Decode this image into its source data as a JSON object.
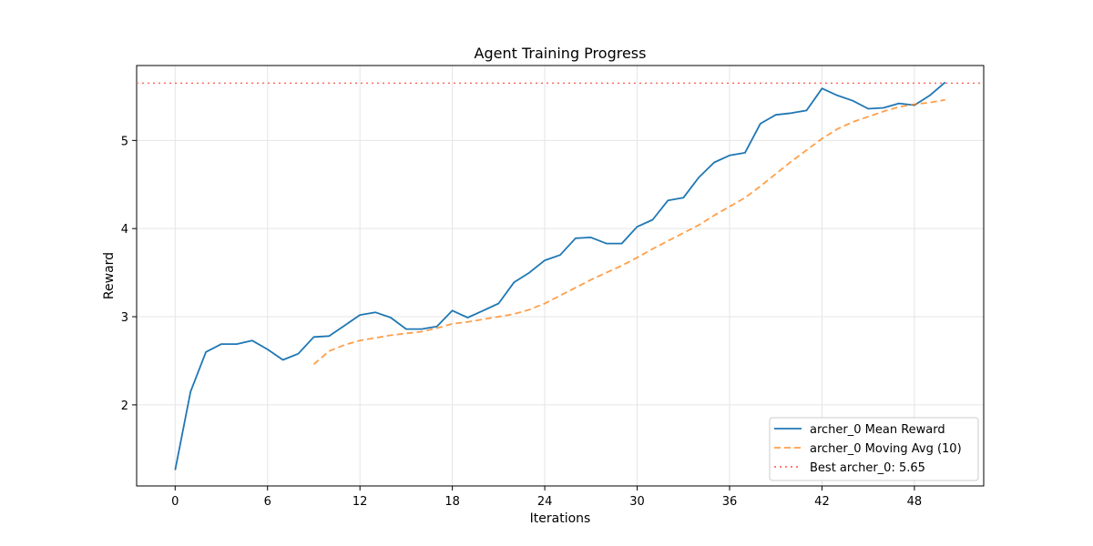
{
  "chart_data": {
    "type": "line",
    "title": "Agent Training Progress",
    "xlabel": "Iterations",
    "ylabel": "Reward",
    "xlim": [
      -2.5,
      52.5
    ],
    "ylim": [
      1.08,
      5.85
    ],
    "xticks": [
      0,
      6,
      12,
      18,
      24,
      30,
      36,
      42,
      48
    ],
    "yticks": [
      2,
      3,
      4,
      5
    ],
    "grid": true,
    "legend_position": "lower-right",
    "series": [
      {
        "name": "archer_0 Mean Reward",
        "color": "#1f77b4",
        "style": "solid",
        "x": [
          0,
          1,
          2,
          3,
          4,
          5,
          6,
          7,
          8,
          9,
          10,
          11,
          12,
          13,
          14,
          15,
          16,
          17,
          18,
          19,
          20,
          21,
          22,
          23,
          24,
          25,
          26,
          27,
          28,
          29,
          30,
          31,
          32,
          33,
          34,
          35,
          36,
          37,
          38,
          39,
          40,
          41,
          42,
          43,
          44,
          45,
          46,
          47,
          48,
          49,
          50
        ],
        "values": [
          1.26,
          2.15,
          2.6,
          2.69,
          2.69,
          2.73,
          2.63,
          2.51,
          2.58,
          2.77,
          2.78,
          2.9,
          3.02,
          3.05,
          2.99,
          2.86,
          2.86,
          2.89,
          3.07,
          2.99,
          3.07,
          3.15,
          3.39,
          3.5,
          3.64,
          3.7,
          3.89,
          3.9,
          3.83,
          3.83,
          4.02,
          4.1,
          4.32,
          4.35,
          4.58,
          4.75,
          4.83,
          4.86,
          5.19,
          5.29,
          5.31,
          5.34,
          5.59,
          5.51,
          5.45,
          5.36,
          5.37,
          5.42,
          5.4,
          5.51,
          5.66
        ]
      },
      {
        "name": "archer_0 Moving Avg (10)",
        "color": "#ff7f0e",
        "style": "dashed",
        "x": [
          9,
          10,
          11,
          12,
          13,
          14,
          15,
          16,
          17,
          18,
          19,
          20,
          21,
          22,
          23,
          24,
          25,
          26,
          27,
          28,
          29,
          30,
          31,
          32,
          33,
          34,
          35,
          36,
          37,
          38,
          39,
          40,
          41,
          42,
          43,
          44,
          45,
          46,
          47,
          48,
          49,
          50
        ],
        "values": [
          2.46,
          2.61,
          2.68,
          2.73,
          2.76,
          2.79,
          2.81,
          2.83,
          2.87,
          2.92,
          2.94,
          2.97,
          3.0,
          3.03,
          3.08,
          3.15,
          3.24,
          3.33,
          3.42,
          3.5,
          3.58,
          3.67,
          3.77,
          3.86,
          3.95,
          4.04,
          4.15,
          4.25,
          4.35,
          4.48,
          4.62,
          4.76,
          4.89,
          5.02,
          5.13,
          5.21,
          5.27,
          5.33,
          5.38,
          5.41,
          5.43,
          5.46
        ]
      }
    ],
    "reference_lines": [
      {
        "name": "Best archer_0: 5.65",
        "y": 5.65,
        "color": "#ff6961",
        "style": "dotted"
      }
    ]
  }
}
